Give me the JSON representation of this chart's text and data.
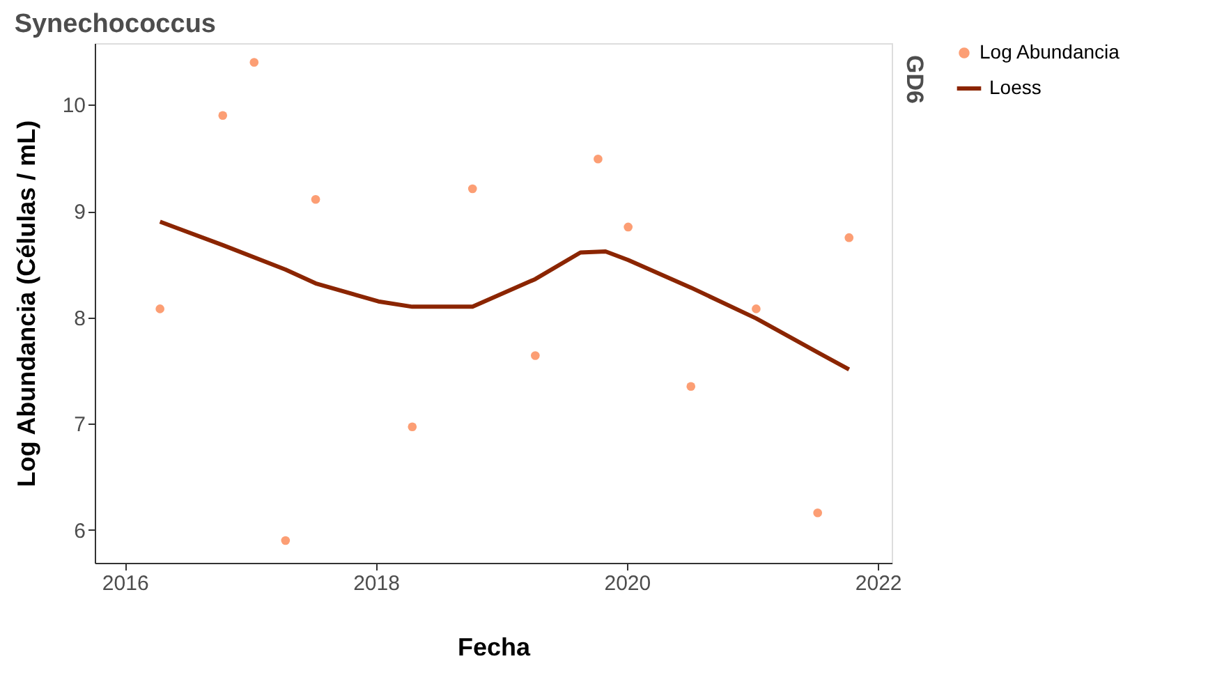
{
  "chart_data": {
    "type": "scatter",
    "title": "Synechococcus",
    "xlabel": "Fecha",
    "ylabel": "Log Abundancia (Células / mL)",
    "annotations": [
      "GD6"
    ],
    "xlim": [
      2015.76,
      2022.11
    ],
    "xticks": [
      2016,
      2018,
      2020,
      2022
    ],
    "ylim": [
      5.69,
      10.58
    ],
    "yticks": [
      6,
      7,
      8,
      9,
      10
    ],
    "grid": false,
    "legend": "right",
    "series": [
      {
        "name": "Log Abundancia",
        "marker": "circle",
        "color": "#fc9e74",
        "x": [
          2016.28,
          2016.78,
          2017.03,
          2017.28,
          2017.52,
          2018.29,
          2018.77,
          2019.27,
          2019.77,
          2020.01,
          2020.51,
          2021.03,
          2021.52,
          2021.77
        ],
        "values": [
          8.08,
          9.9,
          10.4,
          5.9,
          9.11,
          6.97,
          9.21,
          7.64,
          9.49,
          8.85,
          7.35,
          8.08,
          6.16,
          8.75
        ]
      },
      {
        "name": "Loess",
        "type": "line",
        "color": "#8b2500",
        "line_style": "solid",
        "x": [
          2016.28,
          2016.78,
          2017.28,
          2017.52,
          2018.02,
          2018.29,
          2018.77,
          2019.27,
          2019.63,
          2019.83,
          2020.01,
          2020.51,
          2021.03,
          2021.52,
          2021.77
        ],
        "values": [
          8.9,
          8.68,
          8.45,
          8.32,
          8.15,
          8.1,
          8.1,
          8.36,
          8.61,
          8.62,
          8.54,
          8.28,
          7.99,
          7.67,
          7.51
        ]
      }
    ]
  }
}
